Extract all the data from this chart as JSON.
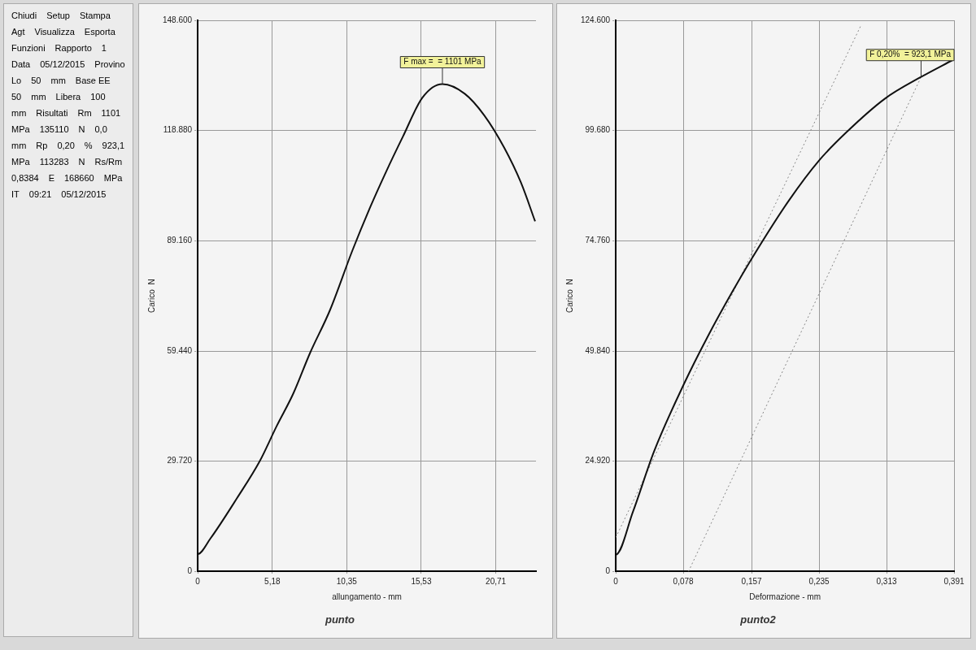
{
  "chart_data": [
    {
      "type": "other",
      "annotations": [
        "Chiudi",
        "Setup",
        "Stampa",
        "Agt",
        "Visualizza",
        "Esporta",
        "Funzioni",
        "Rapporto",
        "1",
        "Data",
        "05/12/2015",
        "Provino",
        "Lo",
        "50",
        "mm",
        "Base EE",
        "50",
        "mm",
        "Libera",
        "100",
        "mm",
        "Risultati",
        "Rm",
        "1101",
        "MPa",
        "135110",
        "N",
        "0,0",
        "mm",
        "Rp",
        "0,20",
        "%",
        "923,1",
        "MPa",
        "113283",
        "N",
        "Rs/Rm",
        "0,8384",
        "E",
        "168660",
        "MPa",
        "IT",
        "09:21",
        "05/12/2015"
      ]
    },
    {
      "type": "line",
      "title": "punto",
      "xlabel": "allungamento - mm",
      "ylabel": "Carico  N",
      "grid": true,
      "xlim": [
        0,
        23.5
      ],
      "xticks": [
        0,
        {
          "value": 5.18,
          "label": "5,18"
        },
        {
          "value": 10.35,
          "label": "10,35"
        },
        {
          "value": 15.53,
          "label": "15,53"
        },
        {
          "value": 20.71,
          "label": "20,71"
        }
      ],
      "ylim": [
        0,
        148600
      ],
      "yticks": [
        0,
        {
          "value": 29720,
          "label": "29.720"
        },
        {
          "value": 59440,
          "label": "59.440"
        },
        {
          "value": 89160,
          "label": "89.160"
        },
        {
          "value": 118880,
          "label": "118.880"
        },
        {
          "value": 148600,
          "label": "148.600"
        }
      ],
      "series": [
        {
          "color": "#111111",
          "x": [
            0,
            0,
            0.88,
            2.73,
            4.3,
            5.47,
            6.64,
            7.8,
            9.18,
            10.74,
            11.9,
            13.1,
            14.26,
            15.6,
            17.0,
            18.55,
            19.9,
            21.3,
            22.46,
            23.44
          ],
          "values": [
            0,
            4700,
            8900,
            19800,
            29700,
            39100,
            48000,
            58900,
            70400,
            86500,
            97500,
            107900,
            117300,
            127700,
            131400,
            128800,
            123000,
            114200,
            104800,
            94400
          ]
        }
      ],
      "annotations": [
        {
          "text": "F max =  = 1101 MPa",
          "x": 17.0,
          "y": 131400
        }
      ]
    },
    {
      "type": "line",
      "title": "punto2",
      "xlabel": "Deformazione - mm",
      "ylabel": "Carico  N",
      "grid": true,
      "xlim": [
        0,
        0.391
      ],
      "xticks": [
        0,
        {
          "value": 0.078,
          "label": "0,078"
        },
        {
          "value": 0.157,
          "label": "0,157"
        },
        {
          "value": 0.235,
          "label": "0,235"
        },
        {
          "value": 0.313,
          "label": "0,313"
        },
        {
          "value": 0.391,
          "label": "0,391"
        }
      ],
      "ylim": [
        0,
        124600
      ],
      "yticks": [
        0,
        {
          "value": 24920,
          "label": "24.920"
        },
        {
          "value": 49840,
          "label": "49.840"
        },
        {
          "value": 74760,
          "label": "74.760"
        },
        {
          "value": 99680,
          "label": "99.680"
        },
        {
          "value": 124600,
          "label": "124.600"
        }
      ],
      "series": [
        {
          "color": "#111111",
          "x": [
            0,
            0,
            0.0198,
            0.0441,
            0.0788,
            0.1065,
            0.1343,
            0.1586,
            0.2002,
            0.2349,
            0.2661,
            0.3112,
            0.3529,
            0.3893
          ],
          "values": [
            0,
            3800,
            13500,
            27100,
            42400,
            53200,
            63100,
            71200,
            83900,
            92900,
            99200,
            106900,
            111800,
            115600
          ]
        },
        {
          "color": "#888888",
          "line_style": "dotted",
          "x": [
            0,
            0.2835
          ],
          "values": [
            7700,
            123500
          ]
        },
        {
          "color": "#888888",
          "line_style": "dotted",
          "x": [
            0.084,
            0.3529
          ],
          "values": [
            0,
            111800
          ]
        }
      ],
      "annotations": [
        {
          "text": "F 0,20%  = 923,1 MPa",
          "x": 0.3529,
          "y": 111800
        }
      ]
    }
  ]
}
